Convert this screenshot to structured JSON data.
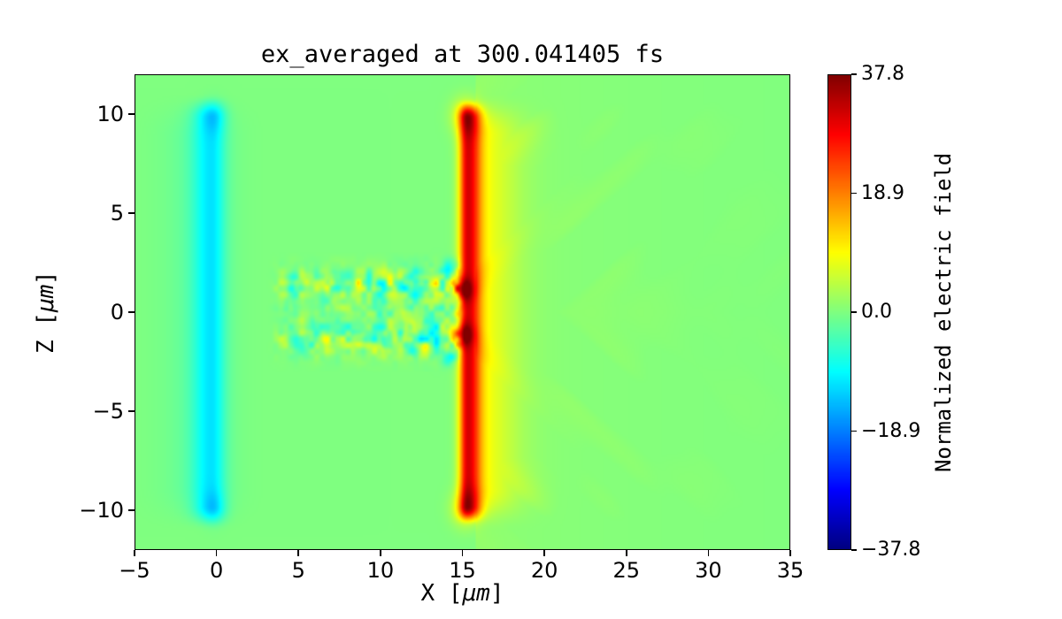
{
  "chart_data": {
    "type": "heatmap",
    "title": "ex_averaged at 300.041405 fs",
    "xlabel": "X [μm]",
    "ylabel": "Z [μm]",
    "xlabel_parts": {
      "pre": "X [",
      "unit": "μm",
      "post": "]"
    },
    "ylabel_parts": {
      "pre": "Z [",
      "unit": "μm",
      "post": "]"
    },
    "colorbar_label": "Normalized electric field",
    "colormap": "jet",
    "x_range": [
      -5,
      35
    ],
    "z_range": [
      -12,
      12
    ],
    "x_ticks": [
      -5,
      0,
      5,
      10,
      15,
      20,
      25,
      30,
      35
    ],
    "x_tick_labels": [
      "−5",
      "0",
      "5",
      "10",
      "15",
      "20",
      "25",
      "30",
      "35"
    ],
    "z_ticks": [
      10,
      5,
      0,
      -5,
      -10
    ],
    "z_tick_labels": [
      "10",
      "5",
      "0",
      "−5",
      "−10"
    ],
    "value_range": [
      -37.8,
      37.8
    ],
    "colorbar_ticks": [
      37.8,
      18.9,
      0.0,
      -18.9,
      -37.8
    ],
    "colorbar_tick_labels": [
      "37.8",
      "18.9",
      "0.0",
      "−18.9",
      "−37.8"
    ],
    "background_value": 0.0,
    "features": [
      {
        "name": "front-surface-sheath",
        "type": "vband",
        "x_center": -0.3,
        "x_sigma_left": 1.1,
        "x_sigma_right": 0.8,
        "z_extent": 10.4,
        "z_edge": 1.2,
        "amplitude": -9.5
      },
      {
        "name": "front-surface-halo",
        "type": "vband",
        "x_center": -0.9,
        "x_sigma_left": 2.4,
        "x_sigma_right": 2.0,
        "z_extent": 10.0,
        "z_edge": 2.5,
        "amplitude": -2.2
      },
      {
        "name": "rear-surface-sheath-core",
        "type": "vband",
        "x_center": 15.3,
        "x_sigma_left": 0.5,
        "x_sigma_right": 0.75,
        "z_extent": 10.3,
        "z_edge": 1.0,
        "amplitude": 26
      },
      {
        "name": "rear-surface-sheath-halo",
        "type": "vband",
        "x_center": 15.9,
        "x_sigma_left": 0.9,
        "x_sigma_right": 2.4,
        "z_extent": 10.0,
        "z_edge": 2.2,
        "amplitude": 8
      },
      {
        "name": "rear-sheath-end-lobe",
        "type": "blob",
        "x": 15.2,
        "z": 9.9,
        "sx": 0.85,
        "sz": 0.9,
        "amplitude": 9,
        "mirror_z": true
      },
      {
        "name": "front-band-end-tip",
        "type": "blob",
        "x": -0.2,
        "z": 9.9,
        "sx": 0.7,
        "sz": 0.8,
        "amplitude": -4,
        "mirror_z": true
      },
      {
        "name": "axis-hot-spot",
        "type": "blob",
        "x": 14.8,
        "z": 1.15,
        "sx": 0.7,
        "sz": 0.55,
        "amplitude": 18,
        "mirror_z": true
      },
      {
        "name": "axis-cold-notch",
        "type": "blob",
        "x": 14.2,
        "z": 2.2,
        "sx": 0.5,
        "sz": 0.45,
        "amplitude": -9,
        "mirror_z": true
      },
      {
        "name": "laser-channel-turbulence",
        "type": "turbulence",
        "x_min": 3.0,
        "x_max": 15.2,
        "z_band_center": 1.4,
        "z_band_sigma": 0.8,
        "z_axis_weight": 0.45,
        "z_axis_sigma": 0.6,
        "amplitude": 13,
        "scale": 1.5,
        "seed": 7
      },
      {
        "name": "transmitted-field-wake",
        "type": "wake",
        "x_start": 15.8,
        "x_decay": 9.0,
        "amplitude": 3.0,
        "stripe_amplitude": 2.2,
        "seed": 3
      }
    ]
  }
}
